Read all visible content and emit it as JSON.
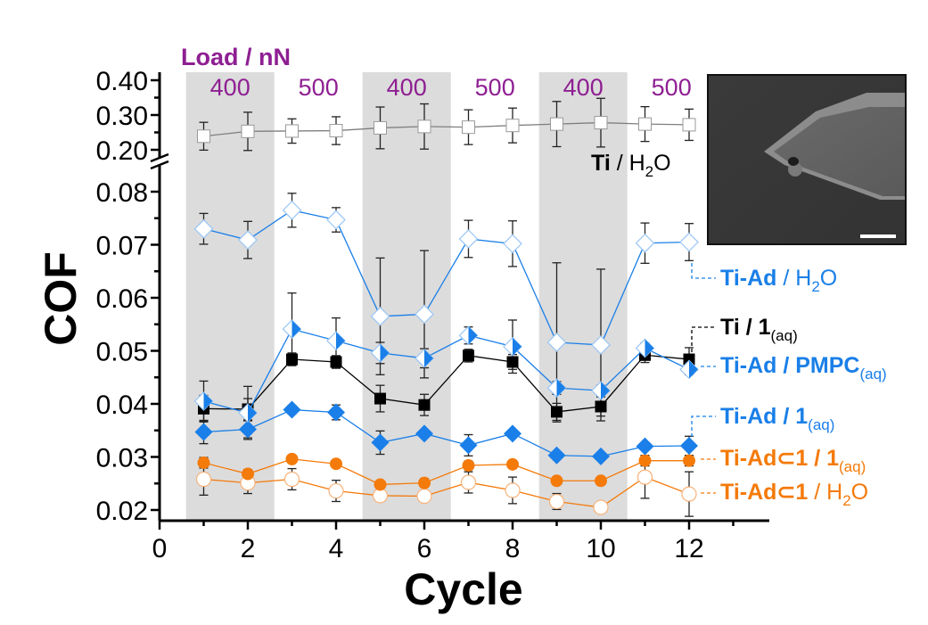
{
  "chart_data": {
    "type": "line",
    "title": "",
    "xlabel": "Cycle",
    "ylabel": "COF",
    "x": [
      1,
      2,
      3,
      4,
      5,
      6,
      7,
      8,
      9,
      10,
      11,
      12
    ],
    "xlim": [
      0,
      13.8
    ],
    "x_ticks": [
      "0",
      "2",
      "4",
      "6",
      "8",
      "10",
      "12"
    ],
    "x_tick_values": [
      0,
      2,
      4,
      6,
      8,
      10,
      12
    ],
    "y_axis_broken": true,
    "ylim_lower": [
      0.018,
      0.082
    ],
    "ylim_upper": [
      0.18,
      0.42
    ],
    "y_ticks_lower": [
      "0.02",
      "0.03",
      "0.04",
      "0.05",
      "0.06",
      "0.07",
      "0.08"
    ],
    "y_tick_values_lower": [
      0.02,
      0.03,
      0.04,
      0.05,
      0.06,
      0.07,
      0.08
    ],
    "y_ticks_upper": [
      "0.20",
      "0.30",
      "0.40"
    ],
    "y_tick_values_upper": [
      0.2,
      0.3,
      0.4
    ],
    "grid": false,
    "load_annotation": {
      "title": "Load / nN",
      "bands": [
        {
          "label": "400",
          "from": 0.6,
          "to": 2.6,
          "shaded": true
        },
        {
          "label": "500",
          "from": 2.6,
          "to": 4.6,
          "shaded": false
        },
        {
          "label": "400",
          "from": 4.6,
          "to": 6.6,
          "shaded": true
        },
        {
          "label": "500",
          "from": 6.6,
          "to": 8.6,
          "shaded": false
        },
        {
          "label": "400",
          "from": 8.6,
          "to": 10.6,
          "shaded": true
        },
        {
          "label": "500",
          "from": 10.6,
          "to": 12.6,
          "shaded": false
        }
      ],
      "band_color": "#dcdcdc",
      "label_color": "#8e1f92"
    },
    "series": [
      {
        "id": "ti-h2o",
        "name": "Ti / H2O",
        "legend": {
          "bold": "Ti",
          "rest": " / H",
          "sub": "2",
          "tail": "O"
        },
        "color": "#000000",
        "line_color": "#7f7f7f",
        "marker": "square-open",
        "axis": "upper",
        "values": [
          0.239,
          0.253,
          0.254,
          0.255,
          0.263,
          0.267,
          0.265,
          0.27,
          0.274,
          0.278,
          0.274,
          0.272
        ],
        "errors": [
          0.04,
          0.055,
          0.035,
          0.04,
          0.06,
          0.065,
          0.05,
          0.05,
          0.065,
          0.07,
          0.05,
          0.045
        ]
      },
      {
        "id": "tiad-h2o",
        "name": "Ti-Ad / H2O",
        "legend": {
          "bold": "Ti-Ad",
          "rest": " / H",
          "sub": "2",
          "tail": "O"
        },
        "color": "#1a7fe8",
        "marker": "diamond-open",
        "axis": "lower",
        "values": [
          0.073,
          0.0709,
          0.0765,
          0.0747,
          0.0565,
          0.0569,
          0.0711,
          0.0702,
          0.0516,
          0.0511,
          0.0703,
          0.0705
        ],
        "errors": [
          0.0029,
          0.0035,
          0.0032,
          0.0023,
          0.011,
          0.012,
          0.0035,
          0.0043,
          0.015,
          0.0143,
          0.0038,
          0.0035
        ]
      },
      {
        "id": "ti-1",
        "name": "Ti / 1(aq)",
        "legend": {
          "bold": "Ti / 1",
          "rest": "",
          "sub": "(aq)",
          "tail": ""
        },
        "color": "#000000",
        "marker": "square-filled",
        "axis": "lower",
        "values": [
          0.0391,
          0.039,
          0.0484,
          0.0479,
          0.041,
          0.0398,
          0.0491,
          0.0479,
          0.0385,
          0.0395,
          0.0492,
          0.0484
        ],
        "errors": [
          0.0025,
          0.002,
          0.0012,
          0.0012,
          0.0025,
          0.002,
          0.0012,
          0.0014,
          0.0016,
          0.0018,
          0.0014,
          0.0022
        ]
      },
      {
        "id": "tiad-pmpc",
        "name": "Ti-Ad / PMPC(aq)",
        "legend": {
          "bold": "Ti-Ad / PMPC",
          "rest": "",
          "sub": "(aq)",
          "tail": ""
        },
        "color": "#1a7fe8",
        "marker": "diamond-half",
        "axis": "lower",
        "values": [
          0.0405,
          0.0383,
          0.0541,
          0.0519,
          0.0496,
          0.0486,
          0.0529,
          0.0508,
          0.043,
          0.0425,
          0.0505,
          0.0465
        ],
        "errors": [
          0.0038,
          0.005,
          0.0068,
          0.0043,
          0.002,
          0.0018,
          0.0016,
          0.005,
          0.0012,
          0.001,
          0.001,
          0.001
        ]
      },
      {
        "id": "tiad-1",
        "name": "Ti-Ad / 1(aq)",
        "legend": {
          "bold": "Ti-Ad / 1",
          "rest": "",
          "sub": "(aq)",
          "tail": ""
        },
        "color": "#1a7fe8",
        "marker": "diamond-filled",
        "axis": "lower",
        "values": [
          0.0347,
          0.0352,
          0.0389,
          0.0384,
          0.0327,
          0.0344,
          0.0322,
          0.0344,
          0.0303,
          0.0301,
          0.032,
          0.0321
        ],
        "errors": [
          0.0022,
          0.0016,
          0.0008,
          0.0014,
          0.0022,
          0.0006,
          0.002,
          0.0006,
          0.0006,
          0.0006,
          0.0004,
          0.0018
        ]
      },
      {
        "id": "tiad1-1",
        "name": "Ti-Ad⊂1 / 1(aq)",
        "legend": {
          "bold": "Ti-Ad⊂1 / 1",
          "rest": "",
          "sub": "(aq)",
          "tail": ""
        },
        "color": "#f47a0a",
        "marker": "circle-filled",
        "axis": "lower",
        "values": [
          0.0289,
          0.0268,
          0.0296,
          0.0287,
          0.0248,
          0.0251,
          0.0284,
          0.0286,
          0.0255,
          0.0255,
          0.0293,
          0.0293
        ],
        "errors": [
          0.001,
          0.0008,
          0.0006,
          0.0004,
          0.0006,
          0.0008,
          0.0008,
          0.0004,
          0.0007,
          0.0005,
          0.001,
          0.001
        ]
      },
      {
        "id": "tiad1-h2o",
        "name": "Ti-Ad⊂1 / H2O",
        "legend": {
          "bold": "Ti-Ad⊂1",
          "rest": " / H",
          "sub": "2",
          "tail": "O"
        },
        "color": "#f47a0a",
        "marker": "circle-open",
        "axis": "lower",
        "values": [
          0.0258,
          0.0251,
          0.0258,
          0.0236,
          0.0227,
          0.0226,
          0.0252,
          0.0237,
          0.0216,
          0.0205,
          0.0262,
          0.023
        ],
        "errors": [
          0.003,
          0.002,
          0.002,
          0.002,
          0.0006,
          0.0008,
          0.002,
          0.0025,
          0.0015,
          0.0004,
          0.004,
          0.0042
        ]
      }
    ]
  },
  "inset": {
    "description": "SEM image of AFM cantilever tip with colloidal probe",
    "has_scale_bar": true
  }
}
